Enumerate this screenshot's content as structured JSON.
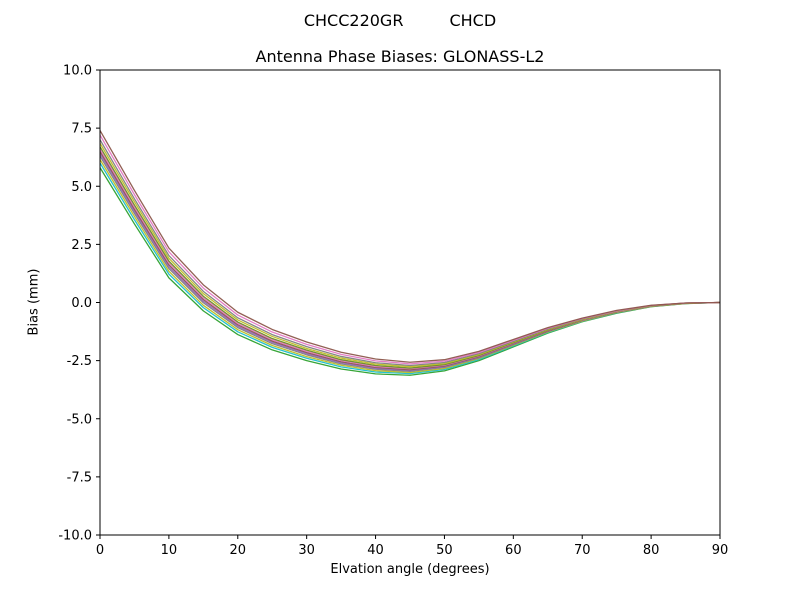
{
  "chart_data": {
    "type": "line",
    "suptitle": {
      "left": "CHCC220GR",
      "right": "CHCD"
    },
    "title": "Antenna Phase Biases: GLONASS-L2",
    "xlabel": "Elvation angle (degrees)",
    "ylabel": "Bias (mm)",
    "xlim": [
      0,
      90
    ],
    "ylim": [
      -10,
      10
    ],
    "grid": false,
    "legend": "none",
    "xtick_values": [
      0,
      10,
      20,
      30,
      40,
      50,
      60,
      70,
      80,
      90
    ],
    "xtick_labels": [
      "0",
      "10",
      "20",
      "30",
      "40",
      "50",
      "60",
      "70",
      "80",
      "90"
    ],
    "ytick_values": [
      -10,
      -7.5,
      -5,
      -2.5,
      0,
      2.5,
      5,
      7.5,
      10
    ],
    "ytick_labels": [
      "-10.0",
      "-7.5",
      "-5.0",
      "-2.5",
      "0.0",
      "2.5",
      "5.0",
      "7.5",
      "10.0"
    ],
    "x": [
      0,
      5,
      10,
      15,
      20,
      25,
      30,
      35,
      40,
      45,
      50,
      55,
      60,
      65,
      70,
      75,
      80,
      85,
      90
    ],
    "series": [
      {
        "name": "1",
        "color": "#2ca02c",
        "values": [
          5.8,
          3.38,
          1.06,
          -0.36,
          -1.38,
          -2.04,
          -2.5,
          -2.86,
          -3.07,
          -3.13,
          -2.94,
          -2.5,
          -1.91,
          -1.32,
          -0.83,
          -0.46,
          -0.18,
          -0.05,
          0.0
        ]
      },
      {
        "name": "2",
        "color": "#17becf",
        "values": [
          6.0,
          3.56,
          1.22,
          -0.22,
          -1.26,
          -1.93,
          -2.4,
          -2.77,
          -2.99,
          -3.06,
          -2.88,
          -2.45,
          -1.87,
          -1.29,
          -0.81,
          -0.44,
          -0.17,
          -0.04,
          0.0
        ]
      },
      {
        "name": "3",
        "color": "#bcbd22",
        "values": [
          6.15,
          3.7,
          1.34,
          -0.12,
          -1.17,
          -1.85,
          -2.33,
          -2.7,
          -2.93,
          -3.01,
          -2.84,
          -2.41,
          -1.84,
          -1.27,
          -0.8,
          -0.43,
          -0.17,
          -0.04,
          0.0
        ]
      },
      {
        "name": "4",
        "color": "#7f7f7f",
        "values": [
          6.3,
          3.83,
          1.46,
          -0.01,
          -1.08,
          -1.77,
          -2.25,
          -2.64,
          -2.87,
          -2.96,
          -2.79,
          -2.38,
          -1.81,
          -1.25,
          -0.78,
          -0.42,
          -0.16,
          -0.04,
          0.0
        ]
      },
      {
        "name": "5",
        "color": "#9467bd",
        "values": [
          6.4,
          3.92,
          1.54,
          0.06,
          -1.02,
          -1.71,
          -2.2,
          -2.59,
          -2.83,
          -2.92,
          -2.76,
          -2.35,
          -1.79,
          -1.23,
          -0.77,
          -0.41,
          -0.16,
          -0.03,
          0.0
        ]
      },
      {
        "name": "6",
        "color": "#8c564b",
        "values": [
          6.5,
          4.01,
          1.62,
          0.13,
          -0.96,
          -1.66,
          -2.15,
          -2.55,
          -2.79,
          -2.89,
          -2.73,
          -2.33,
          -1.77,
          -1.22,
          -0.76,
          -0.41,
          -0.15,
          -0.03,
          0.0
        ]
      },
      {
        "name": "7",
        "color": "#e377c2",
        "values": [
          6.6,
          4.1,
          1.7,
          0.2,
          -0.9,
          -1.6,
          -2.1,
          -2.5,
          -2.75,
          -2.85,
          -2.7,
          -2.3,
          -1.75,
          -1.2,
          -0.75,
          -0.4,
          -0.15,
          -0.03,
          0.0
        ]
      },
      {
        "name": "8",
        "color": "#6b8e23",
        "values": [
          6.7,
          4.19,
          1.78,
          0.27,
          -0.84,
          -1.55,
          -2.05,
          -2.46,
          -2.71,
          -2.82,
          -2.67,
          -2.28,
          -1.73,
          -1.19,
          -0.74,
          -0.39,
          -0.15,
          -0.03,
          0.0
        ]
      },
      {
        "name": "9",
        "color": "#bcbd22",
        "values": [
          6.85,
          4.33,
          1.9,
          0.38,
          -0.75,
          -1.46,
          -1.98,
          -2.39,
          -2.65,
          -2.76,
          -2.63,
          -2.24,
          -1.7,
          -1.16,
          -0.73,
          -0.38,
          -0.14,
          -0.03,
          0.0
        ]
      },
      {
        "name": "10",
        "color": "#7f7f7f",
        "values": [
          7.0,
          4.46,
          2.02,
          0.48,
          -0.66,
          -1.38,
          -1.9,
          -2.32,
          -2.59,
          -2.71,
          -2.58,
          -2.2,
          -1.67,
          -1.14,
          -0.71,
          -0.37,
          -0.13,
          -0.02,
          0.0
        ]
      },
      {
        "name": "11",
        "color": "#e377c2",
        "values": [
          7.2,
          4.64,
          2.18,
          0.62,
          -0.54,
          -1.27,
          -1.8,
          -2.23,
          -2.51,
          -2.64,
          -2.52,
          -2.15,
          -1.63,
          -1.11,
          -0.69,
          -0.36,
          -0.13,
          -0.02,
          0.0
        ]
      },
      {
        "name": "12",
        "color": "#8c564b",
        "values": [
          7.4,
          4.82,
          2.34,
          0.76,
          -0.42,
          -1.16,
          -1.7,
          -2.14,
          -2.43,
          -2.57,
          -2.46,
          -2.1,
          -1.59,
          -1.08,
          -0.67,
          -0.34,
          -0.12,
          -0.02,
          0.0
        ]
      }
    ]
  }
}
